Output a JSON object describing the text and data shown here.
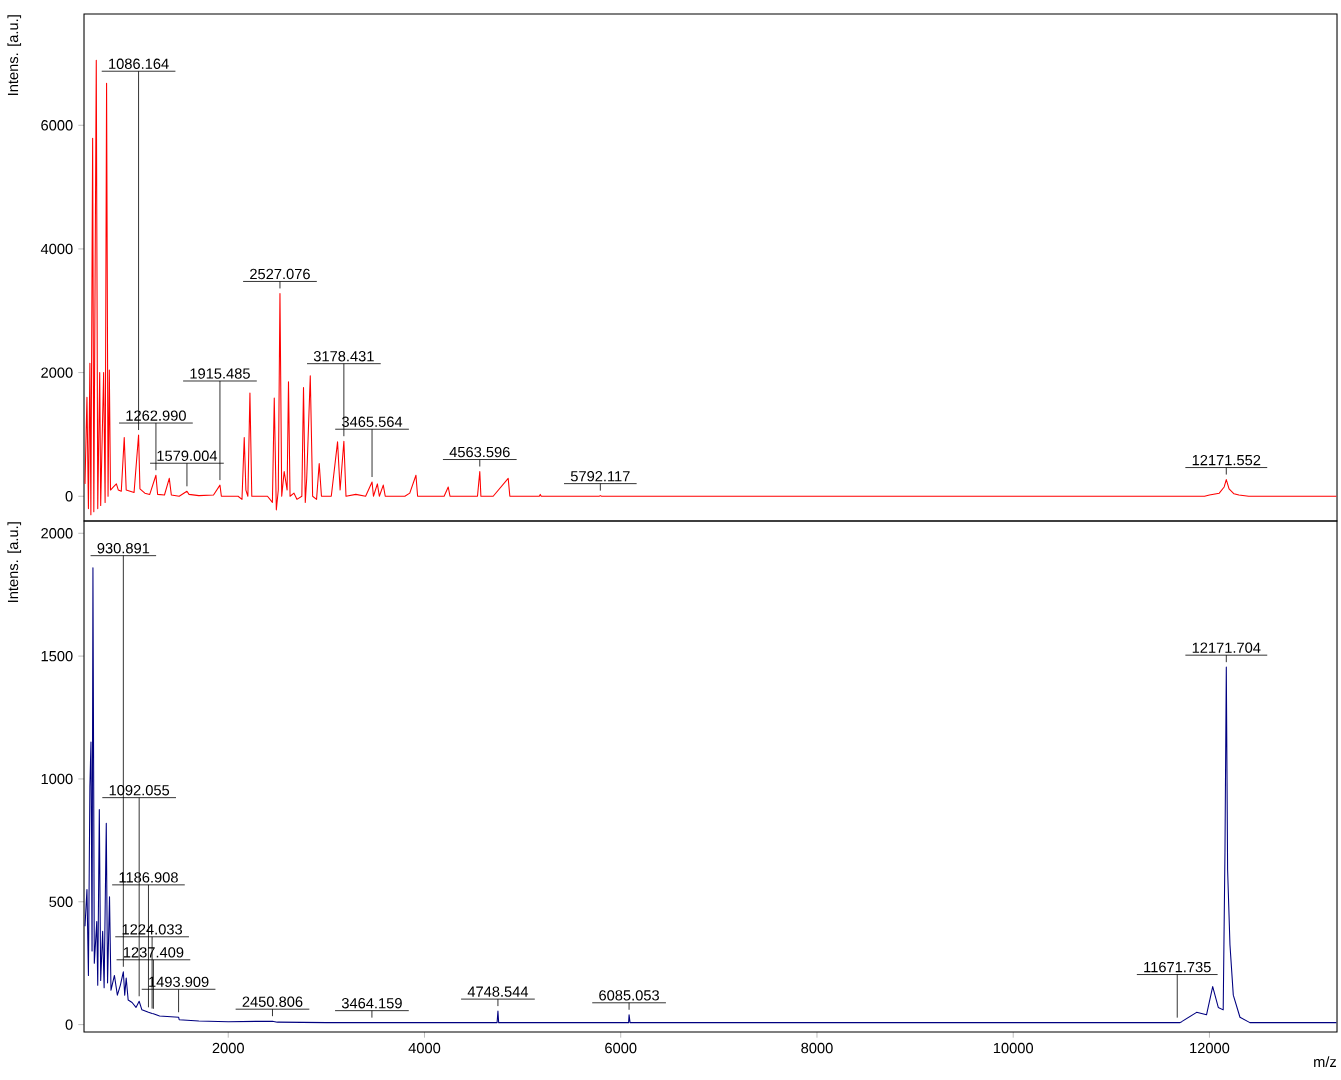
{
  "chart_data": [
    {
      "type": "line",
      "ylabel": "Intens. [a.u.]",
      "xlim": [
        530,
        13300
      ],
      "ylim": [
        -400,
        7800
      ],
      "yticks": [
        0,
        2000,
        4000,
        6000
      ],
      "tick_labels": "y",
      "series": [
        {
          "color": "#ff0000",
          "x": [
            540,
            560,
            575,
            590,
            600,
            618,
            630,
            655,
            670,
            690,
            700,
            730,
            745,
            760,
            775,
            788,
            800,
            830,
            860,
            880,
            910,
            940,
            960,
            1000,
            1040,
            1086.164,
            1100,
            1150,
            1200,
            1262.99,
            1280,
            1350,
            1399,
            1420,
            1500,
            1579.004,
            1600,
            1700,
            1850,
            1915.485,
            1930,
            2100,
            2140,
            2163,
            2180,
            2200,
            2221,
            2240,
            2400,
            2450,
            2469,
            2490,
            2510,
            2527.076,
            2545,
            2570,
            2600,
            2614,
            2630,
            2670,
            2700,
            2750,
            2767,
            2785,
            2800,
            2836,
            2860,
            2900,
            2927,
            2950,
            3050,
            3114,
            3140,
            3178.431,
            3200,
            3300,
            3400,
            3465.564,
            3480,
            3520,
            3540,
            3580,
            3600,
            3800,
            3850,
            3913,
            3930,
            4200,
            4242,
            4260,
            4540,
            4563.596,
            4575,
            4700,
            4853,
            4870,
            5170,
            5180,
            5190,
            5780,
            5792.117,
            5805,
            11950,
            12000,
            12100,
            12150,
            12171.552,
            12200,
            12250,
            12300,
            12400,
            13294
          ],
          "values": [
            200,
            1600,
            -200,
            2150,
            -300,
            5790,
            -250,
            7050,
            -200,
            2000,
            -150,
            2000,
            -100,
            6680,
            0,
            2040,
            100,
            150,
            200,
            100,
            80,
            950,
            100,
            80,
            60,
            990,
            120,
            50,
            30,
            340,
            30,
            20,
            290,
            20,
            0,
            80,
            30,
            10,
            20,
            180,
            0,
            0,
            -50,
            950,
            100,
            0,
            1670,
            0,
            0,
            -100,
            1590,
            -220,
            100,
            3280,
            0,
            400,
            100,
            1850,
            0,
            50,
            -50,
            0,
            1760,
            -100,
            300,
            1950,
            0,
            -50,
            530,
            0,
            0,
            880,
            100,
            890,
            0,
            30,
            0,
            230,
            0,
            200,
            0,
            180,
            0,
            0,
            50,
            340,
            0,
            0,
            150,
            0,
            0,
            400,
            0,
            0,
            290,
            0,
            0,
            30,
            0,
            0,
            10,
            0,
            0,
            20,
            50,
            150,
            270,
            120,
            40,
            20,
            0,
            0
          ]
        }
      ],
      "annotations": [
        {
          "text": "1086.164",
          "x": 1086.164,
          "y": 990
        },
        {
          "text": "1262.990",
          "x": 1262.99,
          "y": 340
        },
        {
          "text": "1579.004",
          "x": 1579.004,
          "y": 80
        },
        {
          "text": "1915.485",
          "x": 1915.485,
          "y": 180
        },
        {
          "text": "2527.076",
          "x": 2527.076,
          "y": 3280
        },
        {
          "text": "3178.431",
          "x": 3178.431,
          "y": 890
        },
        {
          "text": "3465.564",
          "x": 3465.564,
          "y": 230
        },
        {
          "text": "4563.596",
          "x": 4563.596,
          "y": 400
        },
        {
          "text": "5792.117",
          "x": 5792.117,
          "y": 10
        },
        {
          "text": "12171.552",
          "x": 12171.552,
          "y": 270
        }
      ]
    },
    {
      "type": "line",
      "ylabel": "Intens. [a.u.]",
      "xlabel": "m/z",
      "xlim": [
        530,
        13300
      ],
      "ylim": [
        -30,
        2050
      ],
      "xticks": [
        2000,
        4000,
        6000,
        8000,
        10000,
        12000
      ],
      "yticks": [
        0,
        500,
        1000,
        1500,
        2000
      ],
      "series": [
        {
          "color": "#000080",
          "x": [
            540,
            560,
            575,
            590,
            601,
            612,
            621,
            635,
            660,
            670,
            686,
            700,
            720,
            735,
            757,
            770,
            790,
            805,
            840,
            870,
            900,
            930.891,
            945,
            960,
            980,
            1020,
            1060,
            1092.055,
            1120,
            1186.908,
            1224.033,
            1237.409,
            1300,
            1493.909,
            1500,
            1700,
            2000,
            2450.806,
            2500,
            3000,
            3464.159,
            4000,
            4740,
            4748.544,
            4756,
            6080,
            6085.053,
            6095,
            11671.735,
            11700,
            11717,
            11869,
            11970,
            12033,
            12090,
            12140,
            12158,
            12171.704,
            12185,
            12209,
            12243,
            12311,
            12412,
            13294
          ],
          "values": [
            400,
            550,
            200,
            970,
            1150,
            300,
            1860,
            250,
            420,
            160,
            875,
            180,
            380,
            150,
            820,
            170,
            520,
            140,
            200,
            120,
            160,
            215,
            120,
            190,
            100,
            90,
            70,
            95,
            60,
            50,
            45,
            44,
            35,
            30,
            20,
            15,
            12,
            14,
            10,
            8,
            8,
            8,
            8,
            55,
            8,
            8,
            40,
            8,
            8,
            8,
            12,
            50,
            40,
            155,
            70,
            60,
            700,
            1455,
            630,
            325,
            120,
            30,
            8,
            8
          ]
        }
      ],
      "annotations": [
        {
          "text": "930.891",
          "x": 930.891,
          "y": 215
        },
        {
          "text": "1092.055",
          "x": 1092.055,
          "y": 95
        },
        {
          "text": "1186.908",
          "x": 1186.908,
          "y": 50
        },
        {
          "text": "1224.033",
          "x": 1224.033,
          "y": 45
        },
        {
          "text": "1237.409",
          "x": 1237.409,
          "y": 44
        },
        {
          "text": "1493.909",
          "x": 1493.909,
          "y": 30
        },
        {
          "text": "2450.806",
          "x": 2450.806,
          "y": 14
        },
        {
          "text": "3464.159",
          "x": 3464.159,
          "y": 8
        },
        {
          "text": "4748.544",
          "x": 4748.544,
          "y": 55
        },
        {
          "text": "6085.053",
          "x": 6085.053,
          "y": 40
        },
        {
          "text": "11671.735",
          "x": 11671.735,
          "y": 8
        },
        {
          "text": "12171.704",
          "x": 12171.704,
          "y": 1455
        }
      ]
    }
  ]
}
